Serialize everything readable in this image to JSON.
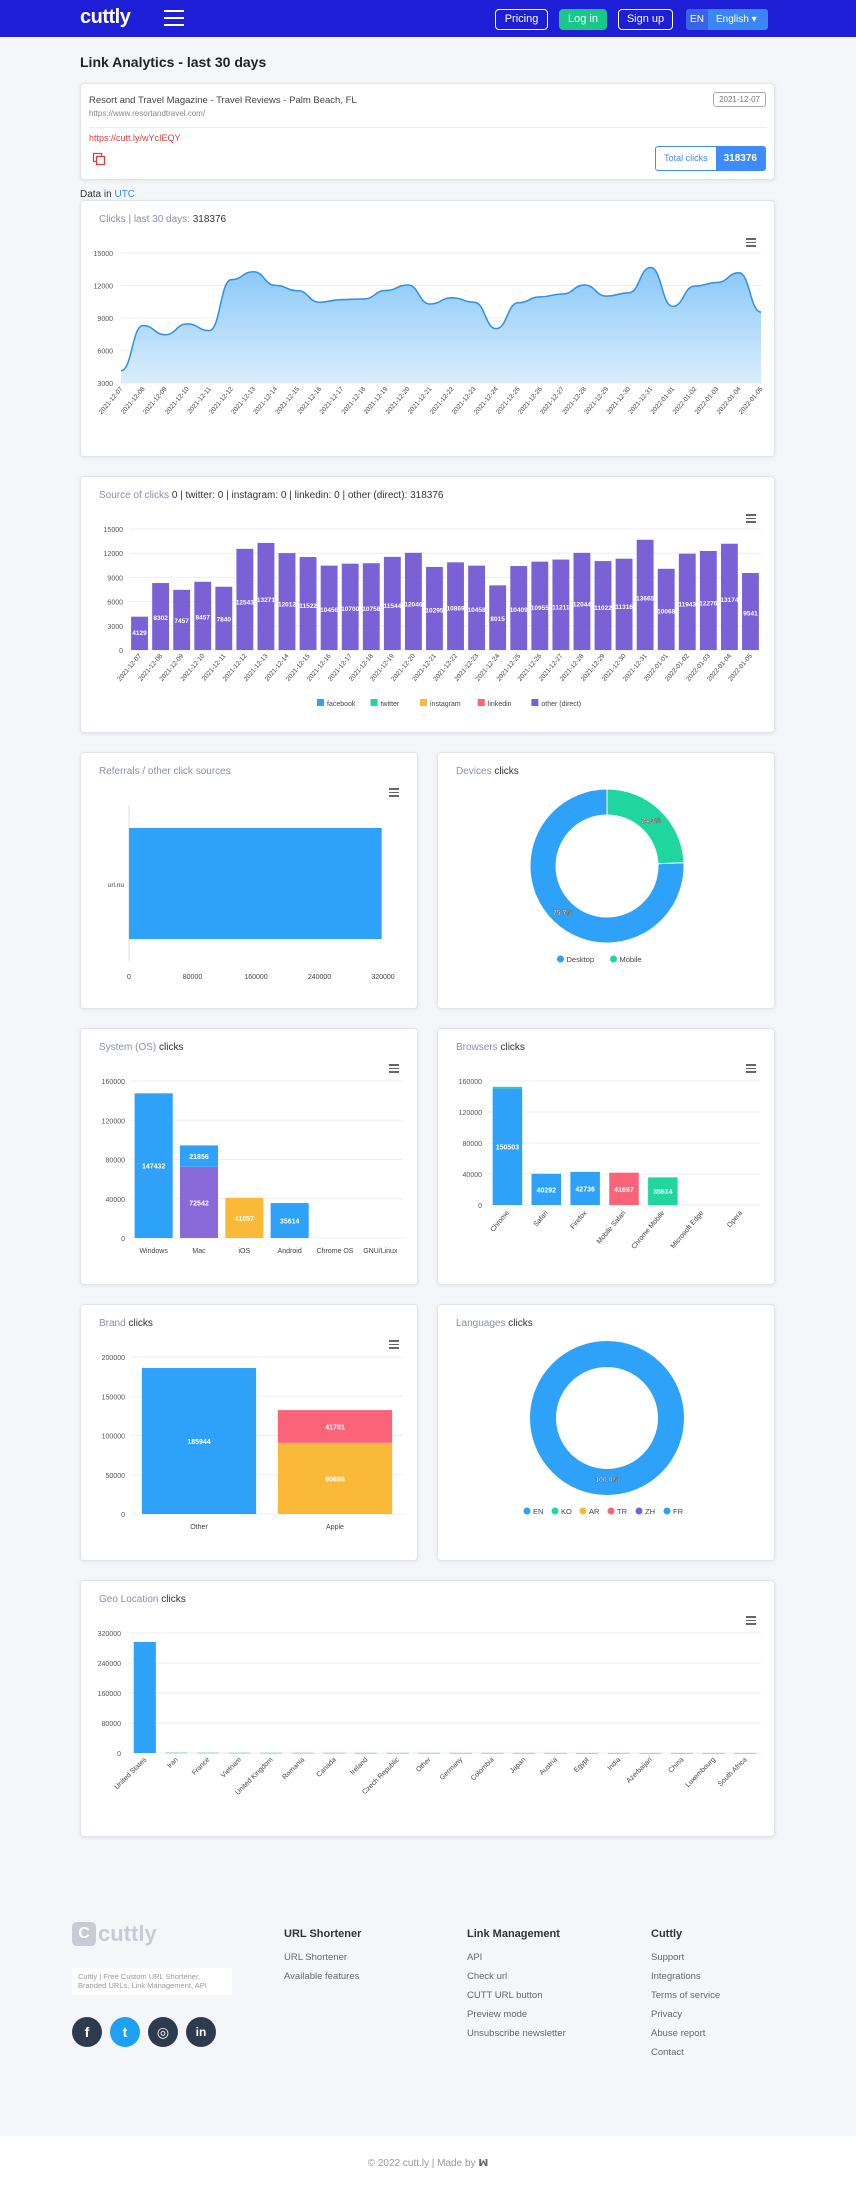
{
  "nav": {
    "logo": "cuttly",
    "pricing": "Pricing",
    "login": "Log in",
    "signup": "Sign up",
    "lang_code": "EN",
    "lang_name": "English"
  },
  "page_title": "Link Analytics - last 30 days",
  "link": {
    "site_title": "Resort and Travel Magazine - Travel Reviews - Palm Beach, FL",
    "site_url": "https://www.resortandtravel.com/",
    "date": "2021-12-07",
    "short_url": "https://cutt.ly/wYcIEQY",
    "total_label": "Total clicks",
    "total_value": "318376"
  },
  "timezone": {
    "label": "Data in",
    "zone": "UTC"
  },
  "colors": {
    "blue": "#2ea1f8",
    "purple": "#7b61d6",
    "green": "#1ed69e",
    "orange": "#fbb93a",
    "red": "#fb6478",
    "violet": "#8a6ad8"
  },
  "chart_data": [
    {
      "id": "clicks",
      "type": "area",
      "title_label": "Clicks | last 30 days:",
      "title_value": "318376",
      "categories": [
        "2021-12-07",
        "2021-12-08",
        "2021-12-09",
        "2021-12-10",
        "2021-12-11",
        "2021-12-12",
        "2021-12-13",
        "2021-12-14",
        "2021-12-15",
        "2021-12-16",
        "2021-12-17",
        "2021-12-18",
        "2021-12-19",
        "2021-12-20",
        "2021-12-21",
        "2021-12-22",
        "2021-12-23",
        "2021-12-24",
        "2021-12-25",
        "2021-12-26",
        "2021-12-27",
        "2021-12-28",
        "2021-12-29",
        "2021-12-30",
        "2021-12-31",
        "2022-01-01",
        "2022-01-02",
        "2022-01-03",
        "2022-01-04",
        "2022-01-05"
      ],
      "values": [
        4129,
        8302,
        7457,
        8457,
        7840,
        12543,
        13271,
        12012,
        11522,
        10456,
        10700,
        10758,
        11544,
        12046,
        10295,
        10869,
        10458,
        8015,
        10409,
        10955,
        11211,
        12044,
        11022,
        11316,
        13665,
        10068,
        11943,
        12276,
        13174,
        9541
      ],
      "yticks": [
        3000,
        6000,
        9000,
        12000,
        15000
      ],
      "ylim": [
        3000,
        15000
      ]
    },
    {
      "id": "sources",
      "type": "bar",
      "title_label": "Source of clicks",
      "title_value": "0 | twitter: 0 | instagram: 0 | linkedin: 0 | other (direct): 318376",
      "categories": [
        "2021-12-07",
        "2021-12-08",
        "2021-12-09",
        "2021-12-10",
        "2021-12-11",
        "2021-12-12",
        "2021-12-13",
        "2021-12-14",
        "2021-12-15",
        "2021-12-16",
        "2021-12-17",
        "2021-12-18",
        "2021-12-19",
        "2021-12-20",
        "2021-12-21",
        "2021-12-22",
        "2021-12-23",
        "2021-12-24",
        "2021-12-25",
        "2021-12-26",
        "2021-12-27",
        "2021-12-28",
        "2021-12-29",
        "2021-12-30",
        "2021-12-31",
        "2022-01-01",
        "2022-01-02",
        "2022-01-03",
        "2022-01-04",
        "2022-01-05"
      ],
      "values": [
        4129,
        8302,
        7457,
        8457,
        7840,
        12543,
        13271,
        12012,
        11522,
        10456,
        10700,
        10758,
        11544,
        12046,
        10295,
        10869,
        10458,
        8015,
        10409,
        10955,
        11211,
        12044,
        11022,
        11316,
        13665,
        10068,
        11943,
        12276,
        13174,
        9541
      ],
      "labels": [
        "4129",
        "8302",
        "7457",
        "8457",
        "7840",
        "12543",
        "13271",
        "12012",
        "11522",
        "10456",
        "10700",
        "10758",
        "11544",
        "12046",
        "10295",
        "10869",
        "10458",
        "8015",
        "10409",
        "10955",
        "11211",
        "12044",
        "11022",
        "11316",
        "13665",
        "10068",
        "11943",
        "12276",
        "13174",
        "9541"
      ],
      "yticks": [
        0,
        3000,
        6000,
        9000,
        12000,
        15000
      ],
      "ylim": [
        0,
        15000
      ],
      "legend": [
        "facebook",
        "twitter",
        "instagram",
        "linkedin",
        "other (direct)"
      ]
    },
    {
      "id": "referrals",
      "type": "bar",
      "orientation": "horizontal",
      "title_label": "Referrals / other click sources",
      "title_value": "",
      "categories": [
        "url.nu"
      ],
      "values": [
        318376
      ],
      "xticks": [
        "0",
        "80000",
        "160000",
        "240000",
        "320000"
      ],
      "xlim": [
        0,
        320000
      ]
    },
    {
      "id": "devices",
      "type": "pie",
      "title_label": "Devices",
      "title_value": "clicks",
      "slices": [
        {
          "name": "Desktop",
          "value": 75.7,
          "label": "75.7%"
        },
        {
          "name": "Mobile",
          "value": 24.3,
          "label": "24.3%"
        }
      ]
    },
    {
      "id": "os",
      "type": "bar",
      "stacked": true,
      "title_label": "System (OS)",
      "title_value": "clicks",
      "categories": [
        "Windows",
        "Mac",
        "iOS",
        "Android",
        "Chrome OS",
        "GNU/Linux"
      ],
      "series": [
        {
          "name": "main",
          "values": [
            147432,
            72542,
            41057,
            35614,
            0,
            0
          ],
          "labels": [
            "147432",
            "72542",
            "41057",
            "35614",
            "",
            ""
          ]
        },
        {
          "name": "secondary",
          "values": [
            0,
            21856,
            0,
            0,
            0,
            0
          ],
          "labels": [
            "",
            "21856",
            "",
            "",
            "",
            ""
          ]
        }
      ],
      "yticks": [
        0,
        40000,
        80000,
        120000,
        160000
      ],
      "ylim": [
        0,
        160000
      ]
    },
    {
      "id": "browsers",
      "type": "bar",
      "stacked": true,
      "title_label": "Browsers",
      "title_value": "clicks",
      "categories": [
        "Chrome",
        "Safari",
        "Firefox",
        "Mobile Safari",
        "Chrome Mobile",
        "Microsoft Edge",
        "Opera"
      ],
      "series": [
        {
          "name": "main",
          "values": [
            150503,
            40292,
            42736,
            41697,
            35614,
            0,
            0
          ],
          "labels": [
            "150503",
            "40292",
            "42736",
            "41697",
            "35614",
            "",
            ""
          ]
        },
        {
          "name": "top",
          "values": [
            2000,
            0,
            0,
            0,
            0,
            0,
            0
          ],
          "labels": [
            "",
            "",
            "",
            "",
            "",
            "",
            ""
          ]
        }
      ],
      "yticks": [
        0,
        40000,
        80000,
        120000,
        160000
      ],
      "ylim": [
        0,
        160000
      ]
    },
    {
      "id": "brand",
      "type": "bar",
      "stacked": true,
      "title_label": "Brand",
      "title_value": "clicks",
      "categories": [
        "Other",
        "Apple"
      ],
      "series": [
        {
          "name": "main",
          "values": [
            185944,
            90686
          ],
          "labels": [
            "185944",
            "90686"
          ]
        },
        {
          "name": "top",
          "values": [
            0,
            41701
          ],
          "labels": [
            "",
            "41701"
          ]
        }
      ],
      "yticks": [
        0,
        50000,
        100000,
        150000,
        200000
      ],
      "ylim": [
        0,
        200000
      ]
    },
    {
      "id": "languages",
      "type": "pie",
      "title_label": "Languages",
      "title_value": "clicks",
      "slices": [
        {
          "name": "EN",
          "value": 100.0,
          "label": "100.0%"
        }
      ],
      "legend": [
        "EN",
        "KO",
        "AR",
        "TR",
        "ZH",
        "FR"
      ]
    },
    {
      "id": "geo",
      "type": "bar",
      "title_label": "Geo Location",
      "title_value": "clicks",
      "categories": [
        "United States",
        "Iran",
        "France",
        "Vietnam",
        "United Kingdom",
        "Romania",
        "Canada",
        "Ireland",
        "Czech Republic",
        "Other",
        "Germany",
        "Colombia",
        "Japan",
        "Austria",
        "Egypt",
        "India",
        "Azerbaijan",
        "China",
        "Luxembourg",
        "South Africa"
      ],
      "values": [
        296000,
        800,
        600,
        500,
        500,
        400,
        400,
        300,
        300,
        300,
        200,
        200,
        200,
        150,
        150,
        150,
        100,
        100,
        100,
        100
      ],
      "yticks": [
        0,
        80000,
        160000,
        240000,
        320000
      ],
      "ylim": [
        0,
        320000
      ]
    }
  ],
  "footer": {
    "logo": "cuttly",
    "logo_mark": "C",
    "description": "Cuttly | Free Custom URL Shortener, Branded URLs, Link Management, API",
    "columns": [
      {
        "title": "URL Shortener",
        "items": [
          "URL Shortener",
          "Available features"
        ]
      },
      {
        "title": "Link Management",
        "items": [
          "API",
          "Check url",
          "CUTT URL button",
          "Preview mode",
          "Unsubscribe newsletter"
        ]
      },
      {
        "title": "Cuttly",
        "items": [
          "Support",
          "Integrations",
          "Terms of service",
          "Privacy",
          "Abuse report",
          "Contact"
        ]
      }
    ],
    "social": [
      {
        "name": "facebook",
        "glyph": "f"
      },
      {
        "name": "twitter",
        "glyph": "t"
      },
      {
        "name": "instagram",
        "glyph": "◎"
      },
      {
        "name": "linkedin",
        "glyph": "in"
      }
    ],
    "copyright": "© 2022 cutt.ly | Made by"
  }
}
